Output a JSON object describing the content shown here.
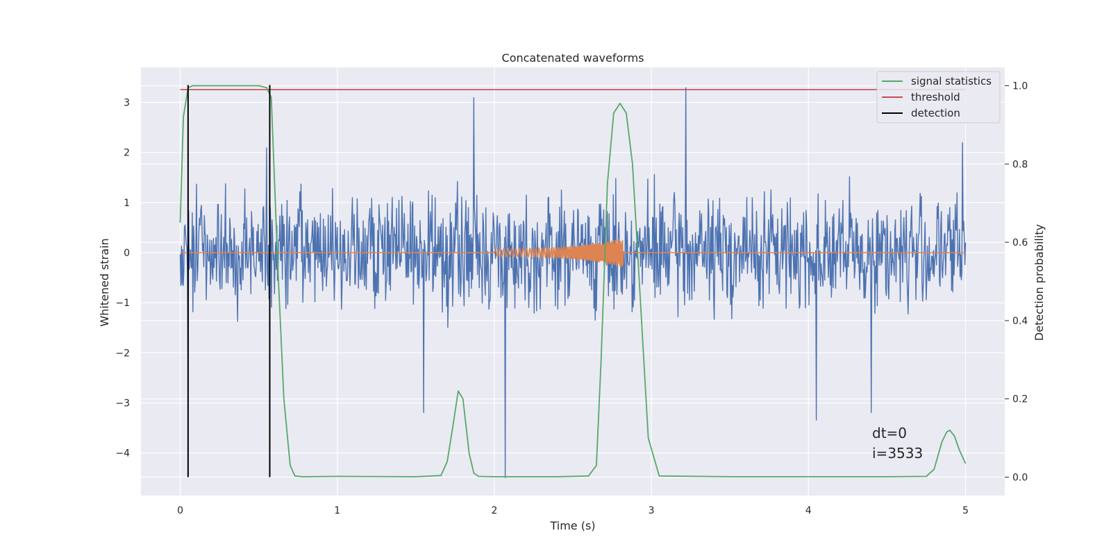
{
  "chart_data": {
    "type": "line",
    "title": "Concatenated waveforms",
    "xlabel": "Time (s)",
    "ylabel": "Whitened strain",
    "y2label": "Detection probability",
    "xlim": [
      -0.25,
      5.25
    ],
    "ylim": [
      -4.85,
      3.7
    ],
    "y2lim": [
      -0.047,
      1.047
    ],
    "xticks": [
      0,
      1,
      2,
      3,
      4,
      5
    ],
    "xtick_labels": [
      "0",
      "1",
      "2",
      "3",
      "4",
      "5"
    ],
    "yticks": [
      -4,
      -3,
      -2,
      -1,
      0,
      1,
      2,
      3
    ],
    "ytick_labels": [
      "−4",
      "−3",
      "−2",
      "−1",
      "0",
      "1",
      "2",
      "3"
    ],
    "y2ticks": [
      0,
      0.2,
      0.4,
      0.6,
      0.8,
      1.0
    ],
    "y2tick_labels": [
      "0.0",
      "0.2",
      "0.4",
      "0.6",
      "0.8",
      "1.0"
    ],
    "grid": true,
    "legend_position": "top-right",
    "legend": [
      "signal statistics",
      "threshold",
      "detection"
    ],
    "annotations": [
      "dt=0",
      "i=3533"
    ],
    "colors": {
      "strain": "#4c72b0",
      "template": "#dd8452",
      "signal_statistics": "#55a868",
      "threshold": "#c44e52",
      "detection": "#000000",
      "plot_background": "#eaeaf2",
      "grid": "#ffffff"
    },
    "strain": {
      "x_start": 0.0,
      "x_end": 5.0,
      "envelope_upper": 1.7,
      "envelope_lower": -1.6,
      "spikes": [
        {
          "x": 0.05,
          "y": -2.8
        },
        {
          "x": 0.55,
          "y": 2.1
        },
        {
          "x": 1.55,
          "y": -3.2
        },
        {
          "x": 1.87,
          "y": 3.1
        },
        {
          "x": 2.07,
          "y": -4.5
        },
        {
          "x": 3.22,
          "y": 3.3
        },
        {
          "x": 4.05,
          "y": -3.35
        },
        {
          "x": 4.4,
          "y": -3.2
        },
        {
          "x": 4.98,
          "y": 2.2
        }
      ]
    },
    "template_waveform": {
      "x_start": 2.0,
      "x_end": 2.82,
      "amp_start": 0.08,
      "amp_end": 0.3
    },
    "signal_statistics": {
      "x": [
        0.0,
        0.02,
        0.05,
        0.08,
        0.15,
        0.3,
        0.5,
        0.55,
        0.58,
        0.62,
        0.66,
        0.7,
        0.73,
        0.78,
        1.0,
        1.5,
        1.66,
        1.7,
        1.74,
        1.77,
        1.8,
        1.84,
        1.87,
        1.9,
        2.0,
        2.4,
        2.6,
        2.65,
        2.68,
        2.72,
        2.76,
        2.8,
        2.84,
        2.88,
        2.93,
        2.98,
        3.05,
        3.5,
        4.5,
        4.75,
        4.8,
        4.85,
        4.88,
        4.9,
        4.93,
        4.96,
        5.0
      ],
      "y": [
        0.65,
        0.92,
        0.995,
        1.0,
        1.0,
        1.0,
        1.0,
        0.995,
        0.97,
        0.55,
        0.2,
        0.03,
        0.003,
        0.001,
        0.002,
        0.001,
        0.004,
        0.04,
        0.14,
        0.22,
        0.2,
        0.06,
        0.01,
        0.002,
        0.001,
        0.001,
        0.003,
        0.03,
        0.3,
        0.75,
        0.93,
        0.955,
        0.93,
        0.8,
        0.45,
        0.1,
        0.003,
        0.001,
        0.001,
        0.002,
        0.02,
        0.09,
        0.115,
        0.12,
        0.105,
        0.07,
        0.035
      ]
    },
    "threshold": {
      "y": 0.99,
      "x": [
        0.0,
        5.0
      ]
    },
    "detections": [
      0.05,
      0.57
    ]
  }
}
